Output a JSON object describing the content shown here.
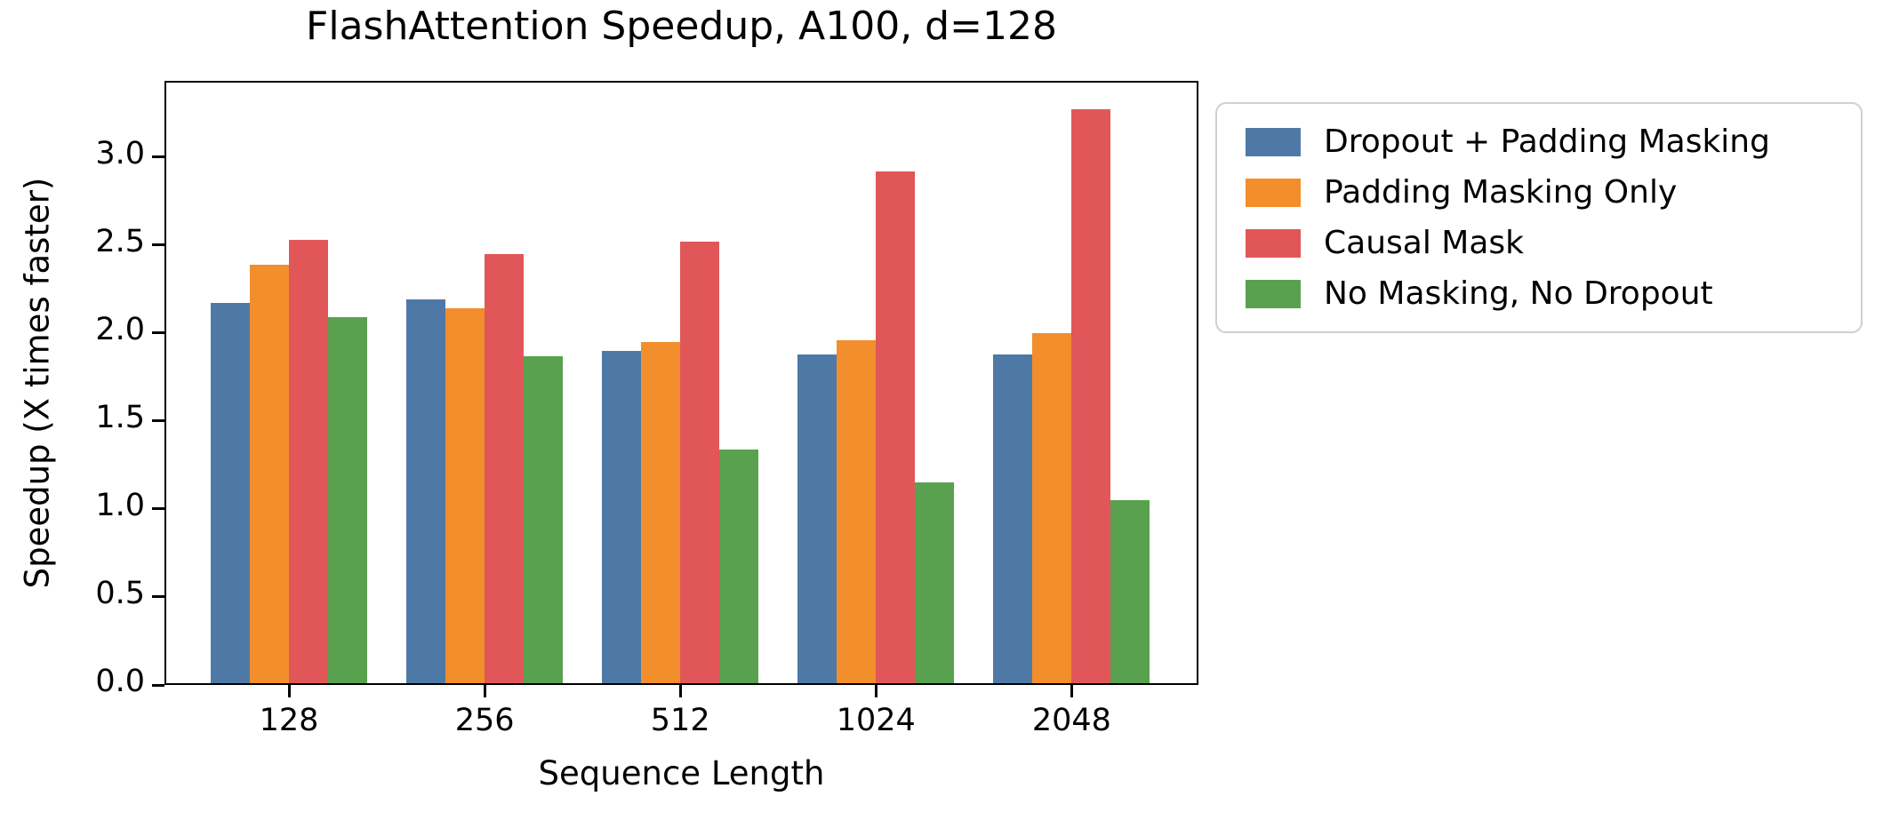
{
  "chart_data": {
    "type": "bar",
    "title": "FlashAttention Speedup, A100, d=128",
    "xlabel": "Sequence Length",
    "ylabel": "Speedup (X times faster)",
    "categories": [
      "128",
      "256",
      "512",
      "1024",
      "2048"
    ],
    "series": [
      {
        "name": "Dropout + Padding Masking",
        "color": "#4E79A7",
        "values": [
          2.16,
          2.18,
          1.89,
          1.87,
          1.87
        ]
      },
      {
        "name": "Padding Masking Only",
        "color": "#F28E2B",
        "values": [
          2.38,
          2.13,
          1.94,
          1.95,
          1.99
        ]
      },
      {
        "name": "Causal Mask",
        "color": "#E15759",
        "values": [
          2.52,
          2.44,
          2.51,
          2.91,
          3.26
        ]
      },
      {
        "name": "No Masking, No Dropout",
        "color": "#59A14F",
        "values": [
          2.08,
          1.86,
          1.33,
          1.14,
          1.04
        ]
      }
    ],
    "ylim": [
      0,
      3.434
    ],
    "yticks": [
      "0.0",
      "0.5",
      "1.0",
      "1.5",
      "2.0",
      "2.5",
      "3.0"
    ],
    "grid": false,
    "legend_position": "outside-right",
    "axis_color": "#000000",
    "background_color": "#ffffff",
    "legend_border_color": "#d0d0d0"
  }
}
